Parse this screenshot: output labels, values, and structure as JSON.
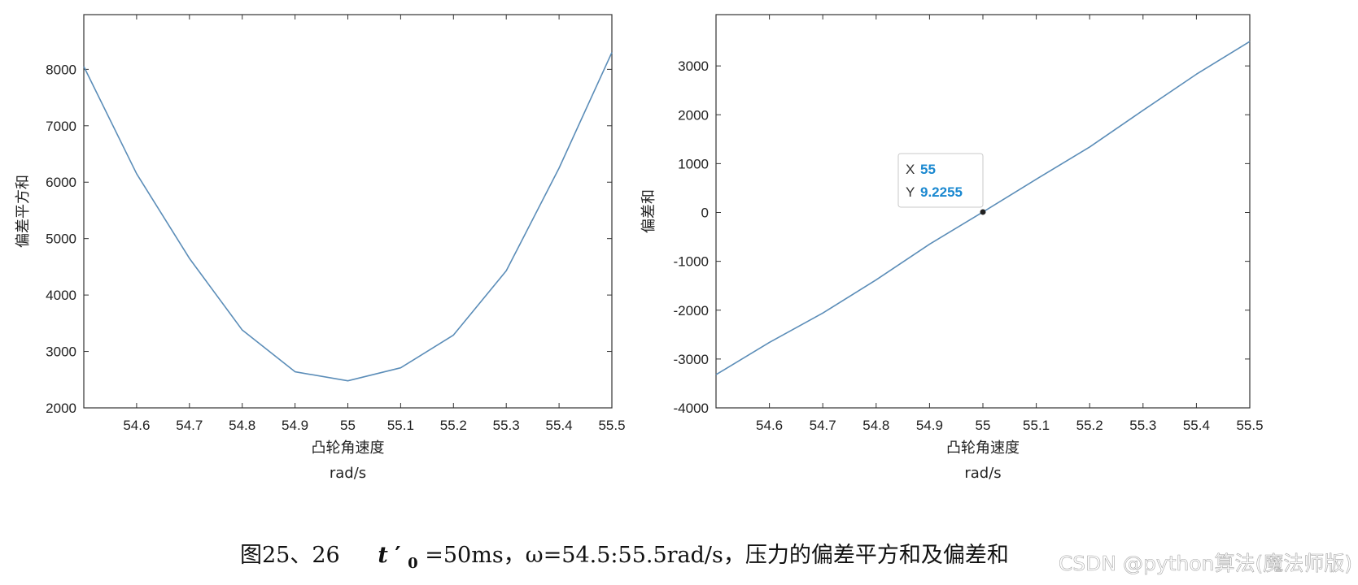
{
  "chart_data": [
    {
      "type": "line",
      "x": [
        54.5,
        54.6,
        54.7,
        54.8,
        54.9,
        55.0,
        55.1,
        55.2,
        55.3,
        55.4,
        55.5
      ],
      "series": [
        {
          "values": [
            8050,
            6150,
            4650,
            3380,
            2640,
            2480,
            2710,
            3290,
            4430,
            6250,
            8300
          ]
        }
      ],
      "xticks": [
        "54.6",
        "54.7",
        "54.8",
        "54.9",
        "55",
        "55.1",
        "55.2",
        "55.3",
        "55.4",
        "55.5"
      ],
      "yticks": [
        "2000",
        "3000",
        "4000",
        "5000",
        "6000",
        "7000",
        "8000"
      ],
      "xlim": [
        54.5,
        55.5
      ],
      "ylim": [
        2000,
        8970
      ],
      "xlabel": "凸轮角速度",
      "xunit": "rad/s",
      "ylabel": "偏差平方和",
      "line_color": "#5b8db8"
    },
    {
      "type": "line",
      "x": [
        54.5,
        54.6,
        54.7,
        54.8,
        54.9,
        55.0,
        55.1,
        55.2,
        55.3,
        55.4,
        55.5
      ],
      "series": [
        {
          "values": [
            -3320,
            -2660,
            -2060,
            -1380,
            -650,
            9.2255,
            680,
            1340,
            2090,
            2830,
            3500
          ]
        }
      ],
      "xticks": [
        "54.6",
        "54.7",
        "54.8",
        "54.9",
        "55",
        "55.1",
        "55.2",
        "55.3",
        "55.4",
        "55.5"
      ],
      "yticks": [
        "-4000",
        "-3000",
        "-2000",
        "-1000",
        "0",
        "1000",
        "2000",
        "3000"
      ],
      "xlim": [
        54.5,
        55.5
      ],
      "ylim": [
        -4000,
        4050
      ],
      "xlabel": "凸轮角速度",
      "xunit": "rad/s",
      "ylabel": "偏差和",
      "line_color": "#5b8db8",
      "datatip": {
        "x_label": "X",
        "x_value": "55",
        "y_label": "Y",
        "y_value": "9.2255",
        "x": 55.0,
        "y": 9.2255,
        "value_color": "#1a88d0"
      }
    }
  ],
  "caption": {
    "prefix": "图25、26",
    "t_symbol": "t",
    "t_prime": "′",
    "t_sub": "0",
    "rest": "=50ms，ω=54.5:55.5rad/s，压力的偏差平方和及偏差和"
  },
  "watermark": "CSDN @python算法(魔法师版)"
}
